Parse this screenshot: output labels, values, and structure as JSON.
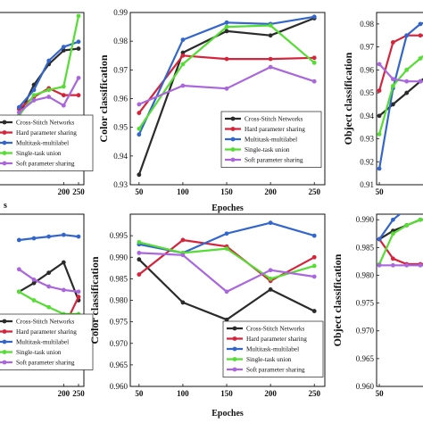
{
  "colors": {
    "Cross-Stitch Networks": "#2b2b2b",
    "Hard parameter sharing": "#d6233a",
    "Multitask-multilabel": "#3366cc",
    "Single-task union": "#55dd33",
    "Soft parameter sharing": "#aa66dd"
  },
  "chart_data": [
    {
      "id": "top-left",
      "type": "line",
      "x": [
        50,
        100,
        150,
        200,
        250
      ],
      "xlim": [
        -20,
        268
      ],
      "ylim": [
        0,
        1
      ],
      "xticks": [
        200,
        250
      ],
      "yticks": [],
      "xlabel": "",
      "xlabel_partial": "s",
      "ylabel": "",
      "legend": "bottom-right",
      "series": [
        {
          "name": "Cross-Stitch Networks",
          "values": [
            0.4,
            0.58,
            0.7,
            0.78,
            0.79
          ]
        },
        {
          "name": "Hard parameter sharing",
          "values": [
            0.44,
            0.51,
            0.56,
            0.52,
            0.52
          ]
        },
        {
          "name": "Multitask-multilabel",
          "values": [
            0.45,
            0.55,
            0.72,
            0.8,
            0.83
          ]
        },
        {
          "name": "Single-task union",
          "values": [
            0.4,
            0.52,
            0.55,
            0.57,
            0.98
          ]
        },
        {
          "name": "Soft parameter sharing",
          "values": [
            0.42,
            0.49,
            0.51,
            0.46,
            0.62
          ]
        }
      ]
    },
    {
      "id": "top-middle",
      "type": "line",
      "x": [
        50,
        100,
        150,
        200,
        250
      ],
      "xlim": [
        40,
        262
      ],
      "ylim": [
        0.93,
        0.99
      ],
      "xticks": [
        50,
        100,
        150,
        200,
        250
      ],
      "yticks": [
        0.93,
        0.94,
        0.95,
        0.96,
        0.97,
        0.98,
        0.99
      ],
      "ytick_labels": [
        "0.93",
        "0.94",
        "0.95",
        "0.96",
        "0.97",
        "0.98",
        "0.99"
      ],
      "xlabel": "Epoches",
      "ylabel": "Color classification",
      "legend": "bottom-right",
      "series": [
        {
          "name": "Cross-Stitch Networks",
          "values": [
            0.9335,
            0.976,
            0.9835,
            0.982,
            0.988
          ]
        },
        {
          "name": "Hard parameter sharing",
          "values": [
            0.955,
            0.975,
            0.9738,
            0.9738,
            0.9742
          ]
        },
        {
          "name": "Multitask-multilabel",
          "values": [
            0.9475,
            0.9805,
            0.9865,
            0.986,
            0.9885
          ]
        },
        {
          "name": "Single-task union",
          "values": [
            0.9495,
            0.972,
            0.985,
            0.9855,
            0.9725
          ]
        },
        {
          "name": "Soft parameter sharing",
          "values": [
            0.958,
            0.9645,
            0.9635,
            0.971,
            0.966
          ]
        }
      ]
    },
    {
      "id": "top-right",
      "type": "line",
      "x": [
        50,
        100,
        150,
        200,
        250
      ],
      "xlim": [
        40,
        262
      ],
      "ylim": [
        0.91,
        0.985
      ],
      "xticks": [
        50
      ],
      "yticks": [
        0.91,
        0.92,
        0.93,
        0.94,
        0.95,
        0.96,
        0.97,
        0.98
      ],
      "ytick_labels": [
        "0.91",
        "0.92",
        "0.93",
        "0.94",
        "0.95",
        "0.96",
        "0.97",
        "0.98"
      ],
      "xlabel": "",
      "ylabel": "Object classification",
      "legend": "",
      "series": [
        {
          "name": "Cross-Stitch Networks",
          "values": [
            0.94,
            0.945,
            0.95,
            0.955,
            0.96
          ]
        },
        {
          "name": "Hard parameter sharing",
          "values": [
            0.951,
            0.972,
            0.975,
            0.975,
            0.975
          ]
        },
        {
          "name": "Multitask-multilabel",
          "values": [
            0.917,
            0.952,
            0.975,
            0.98,
            0.982
          ]
        },
        {
          "name": "Single-task union",
          "values": [
            0.932,
            0.953,
            0.96,
            0.965,
            0.97
          ]
        },
        {
          "name": "Soft parameter sharing",
          "values": [
            0.9625,
            0.956,
            0.955,
            0.955,
            0.955
          ]
        }
      ]
    },
    {
      "id": "bottom-left",
      "type": "line",
      "x": [
        50,
        100,
        150,
        200,
        250
      ],
      "xlim": [
        -20,
        268
      ],
      "ylim": [
        0,
        1
      ],
      "xticks": [
        200,
        250
      ],
      "yticks": [],
      "xlabel": "",
      "ylabel": "",
      "legend": "bottom-right",
      "series": [
        {
          "name": "Cross-Stitch Networks",
          "values": [
            0.55,
            0.6,
            0.66,
            0.72,
            0.5
          ]
        },
        {
          "name": "Hard parameter sharing",
          "values": [
            0.3,
            0.3,
            0.31,
            0.34,
            0.52
          ]
        },
        {
          "name": "Multitask-multilabel",
          "values": [
            0.85,
            0.86,
            0.87,
            0.88,
            0.87
          ]
        },
        {
          "name": "Single-task union",
          "values": [
            0.55,
            0.5,
            0.46,
            0.42,
            0.42
          ]
        },
        {
          "name": "Soft parameter sharing",
          "values": [
            0.68,
            0.62,
            0.58,
            0.56,
            0.55
          ]
        }
      ]
    },
    {
      "id": "bottom-middle",
      "type": "line",
      "x": [
        50,
        100,
        150,
        200,
        250
      ],
      "xlim": [
        40,
        262
      ],
      "ylim": [
        0.96,
        1.0
      ],
      "xticks": [
        50,
        100,
        150,
        200,
        250
      ],
      "yticks": [
        0.96,
        0.965,
        0.97,
        0.975,
        0.98,
        0.985,
        0.99,
        0.995
      ],
      "ytick_labels": [
        "0.960",
        "0.965",
        "0.970",
        "0.975",
        "0.980",
        "0.985",
        "0.990",
        "0.995"
      ],
      "xlabel": "Epoches",
      "ylabel": "Color classification",
      "legend": "bottom-right",
      "series": [
        {
          "name": "Cross-Stitch Networks",
          "values": [
            0.9895,
            0.9795,
            0.9755,
            0.9825,
            0.9775
          ]
        },
        {
          "name": "Hard parameter sharing",
          "values": [
            0.986,
            0.994,
            0.9925,
            0.9845,
            0.99
          ]
        },
        {
          "name": "Multitask-multilabel",
          "values": [
            0.993,
            0.991,
            0.9955,
            0.998,
            0.995
          ]
        },
        {
          "name": "Single-task union",
          "values": [
            0.9935,
            0.991,
            0.992,
            0.985,
            0.988
          ]
        },
        {
          "name": "Soft parameter sharing",
          "values": [
            0.991,
            0.9905,
            0.982,
            0.987,
            0.9855
          ]
        }
      ]
    },
    {
      "id": "bottom-right",
      "type": "line",
      "x": [
        50,
        100,
        150,
        200,
        250
      ],
      "xlim": [
        40,
        262
      ],
      "ylim": [
        0.96,
        0.991
      ],
      "xticks": [
        50
      ],
      "yticks": [
        0.96,
        0.965,
        0.97,
        0.975,
        0.98,
        0.985,
        0.99
      ],
      "ytick_labels": [
        "0.960",
        "0.965",
        "0.970",
        "0.975",
        "0.980",
        "0.985",
        "0.990"
      ],
      "xlabel": "",
      "ylabel": "Object classification",
      "legend": "",
      "series": [
        {
          "name": "Cross-Stitch Networks",
          "values": [
            0.9865,
            0.988,
            0.989,
            0.99,
            0.99
          ]
        },
        {
          "name": "Hard parameter sharing",
          "values": [
            0.9865,
            0.983,
            0.982,
            0.982,
            0.982
          ]
        },
        {
          "name": "Multitask-multilabel",
          "values": [
            0.9865,
            0.99,
            0.992,
            0.993,
            0.993
          ]
        },
        {
          "name": "Single-task union",
          "values": [
            0.982,
            0.9875,
            0.989,
            0.99,
            0.99
          ]
        },
        {
          "name": "Soft parameter sharing",
          "values": [
            0.9818,
            0.9818,
            0.9818,
            0.9818,
            0.9818
          ]
        }
      ]
    }
  ]
}
